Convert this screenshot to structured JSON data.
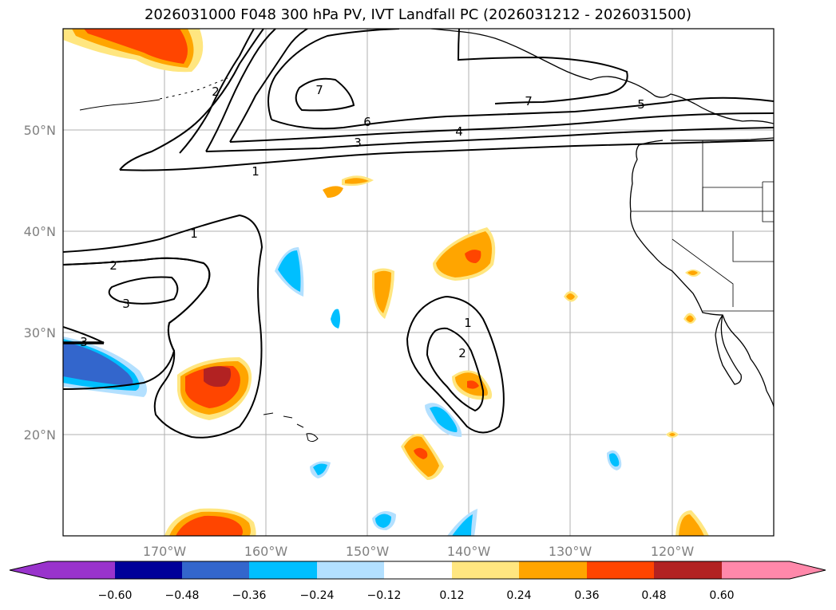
{
  "title": "2026031000 F048 300 hPa PV, IVT Landfall PC (2026031212 - 2026031500)",
  "map": {
    "projection": "PlateCarree",
    "lon_range": [
      -180,
      -110
    ],
    "lat_range": [
      10,
      60
    ],
    "grid": true,
    "lat_ticks": [
      "20°N",
      "30°N",
      "40°N",
      "50°N"
    ],
    "lon_ticks": [
      "170°W",
      "160°W",
      "150°W",
      "140°W",
      "130°W",
      "120°W"
    ]
  },
  "colorbar": {
    "extend": "both",
    "tick_labels": [
      "−0.60",
      "−0.48",
      "−0.36",
      "−0.24",
      "−0.12",
      "0.12",
      "0.24",
      "0.36",
      "0.48",
      "0.60"
    ],
    "colors": [
      "#9933cc",
      "#000099",
      "#3366cc",
      "#00bfff",
      "#b3e0ff",
      "#ffffff",
      "#ffe680",
      "#ffa500",
      "#ff4500",
      "#b22222",
      "#ff88aa"
    ]
  },
  "contour_labels": {
    "north_1": "1",
    "north_3": "3",
    "north_6": "6",
    "north_4": "4",
    "north_5": "5",
    "north_7a": "7",
    "north_7b": "7",
    "north_2": "2",
    "west_1": "1",
    "west_2": "2",
    "west_3": "3",
    "west_3b": "3",
    "center_1": "1",
    "center_2": "2"
  }
}
